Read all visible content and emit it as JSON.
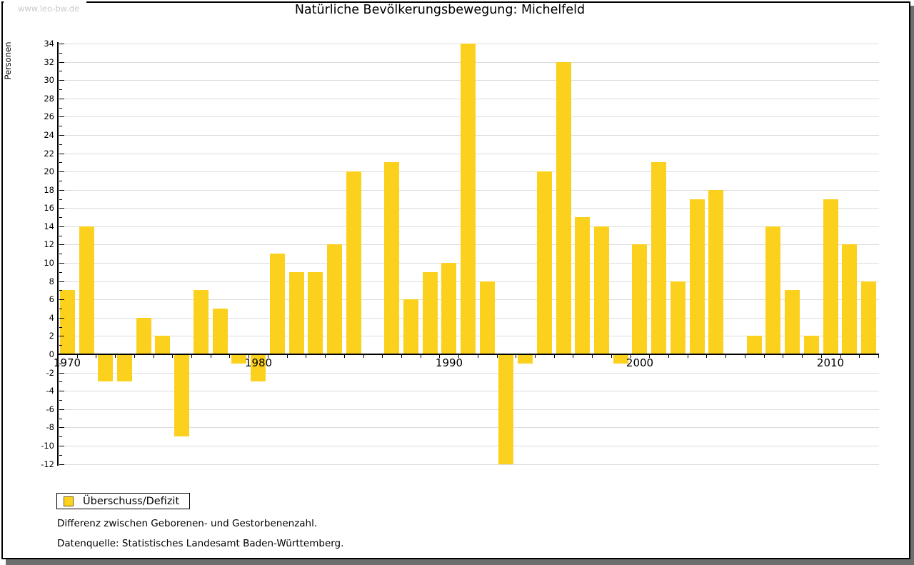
{
  "watermark": "www.leo-bw.de",
  "title": "Natürliche Bevölkerungsbewegung: Michelfeld",
  "legend": {
    "label": "Überschuss/Defizit"
  },
  "footnotes": [
    "Differenz zwischen Geborenen- und Gestorbenenzahl.",
    "Datenquelle: Statistisches Landesamt Baden-Württemberg."
  ],
  "chart_data": {
    "type": "bar",
    "title": "Natürliche Bevölkerungsbewegung: Michelfeld",
    "xlabel": "",
    "ylabel": "Personen",
    "ylim": [
      -12,
      34
    ],
    "ytick_step": 2,
    "grid": "horizontal gridlines every 2 units, light gray",
    "legend_entries": [
      "Überschuss/Defizit"
    ],
    "legend_position": "bottom-left",
    "bar_color": "#fcd11e",
    "x_decade_labels": [
      "1970",
      "1980",
      "1990",
      "2000",
      "2010"
    ],
    "categories": [
      1970,
      1971,
      1972,
      1973,
      1974,
      1975,
      1976,
      1977,
      1978,
      1979,
      1980,
      1981,
      1982,
      1983,
      1984,
      1985,
      1986,
      1987,
      1988,
      1989,
      1990,
      1991,
      1992,
      1993,
      1994,
      1995,
      1996,
      1997,
      1998,
      1999,
      2000,
      2001,
      2002,
      2003,
      2004,
      2005,
      2006,
      2007,
      2008,
      2009,
      2010,
      2011,
      2012
    ],
    "values": [
      7,
      14,
      -3,
      -3,
      4,
      2,
      -9,
      7,
      5,
      -1,
      -3,
      11,
      9,
      9,
      12,
      20,
      0,
      21,
      6,
      9,
      10,
      34,
      8,
      -12,
      -1,
      20,
      32,
      15,
      14,
      -1,
      12,
      21,
      8,
      17,
      18,
      0,
      2,
      14,
      7,
      2,
      17,
      12,
      8
    ]
  }
}
